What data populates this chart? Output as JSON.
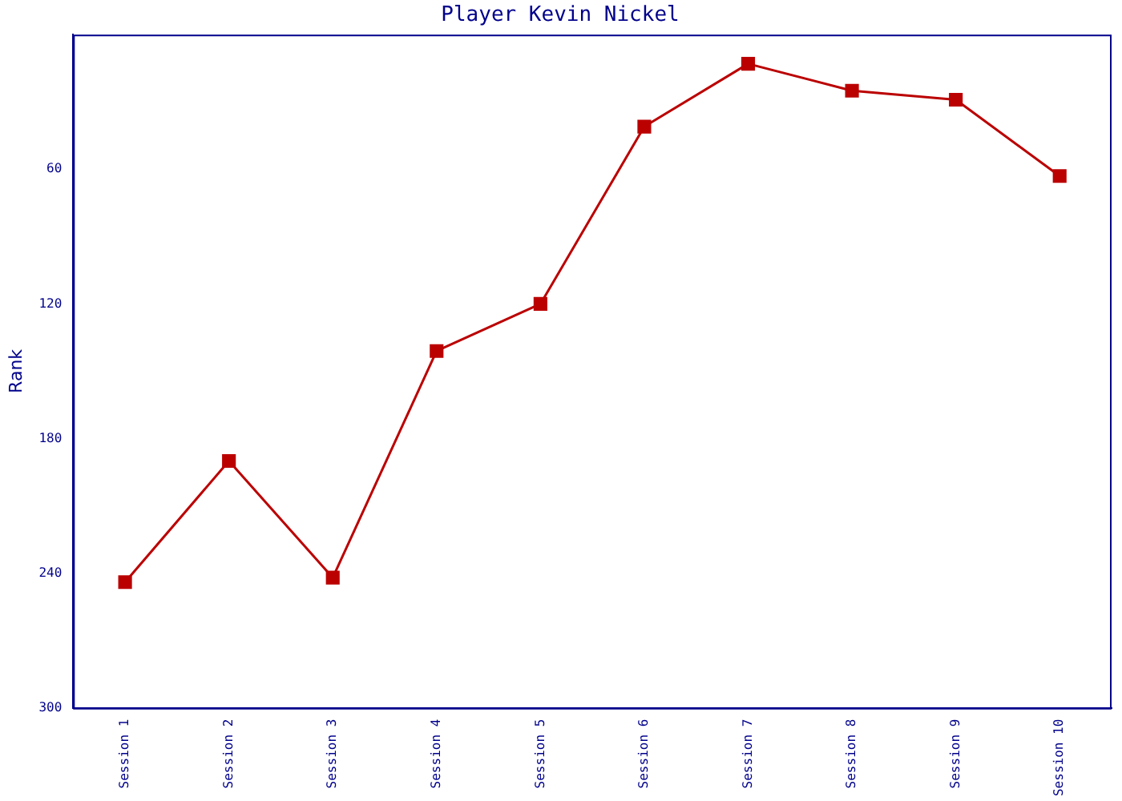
{
  "chart_data": {
    "type": "line",
    "title": "Player Kevin Nickel",
    "ylabel": "Rank",
    "categories": [
      "Session 1",
      "Session 2",
      "Session 3",
      "Session 4",
      "Session 5",
      "Session 6",
      "Session 7",
      "Session 8",
      "Session 9",
      "Session 10"
    ],
    "series": [
      {
        "color": "#bb0000",
        "values": [
          244,
          190,
          242,
          141,
          120,
          41,
          13,
          25,
          29,
          63
        ]
      }
    ],
    "ylim": [
      300,
      0
    ],
    "yticks": [
      60,
      120,
      180,
      240,
      300
    ],
    "grid": false,
    "legend": false,
    "marker": "square",
    "line_style": "solid"
  }
}
